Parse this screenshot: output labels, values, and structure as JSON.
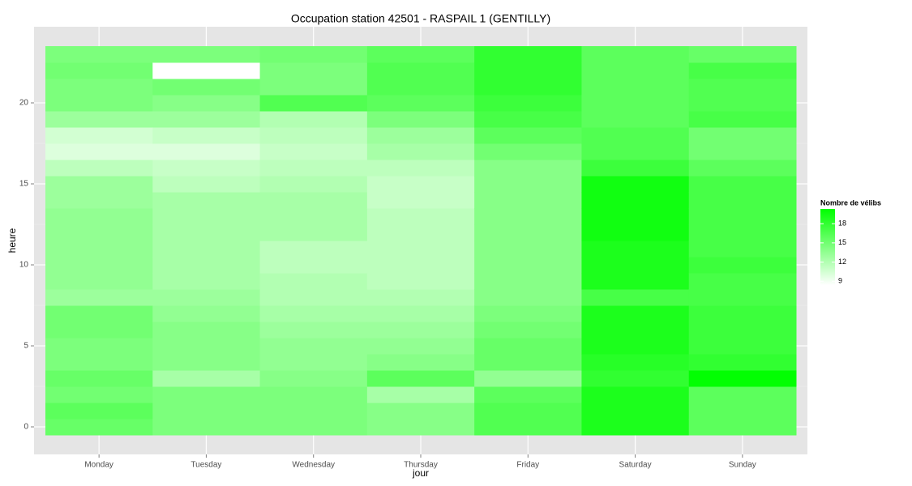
{
  "chart_data": {
    "type": "heatmap",
    "title": "Occupation station 42501 - RASPAIL 1 (GENTILLY)",
    "x_label": "jour",
    "y_label": "heure",
    "categories": [
      "Monday",
      "Tuesday",
      "Wednesday",
      "Thursday",
      "Friday",
      "Saturday",
      "Sunday"
    ],
    "y": [
      0,
      1,
      2,
      3,
      4,
      5,
      6,
      7,
      8,
      9,
      10,
      11,
      12,
      13,
      14,
      15,
      16,
      17,
      18,
      19,
      20,
      21,
      22,
      23
    ],
    "values": [
      [
        15.5,
        16,
        15,
        15.5,
        14.5,
        14.5,
        15,
        15,
        13,
        13.5,
        13.5,
        13.5,
        13.5,
        13.5,
        13,
        13,
        11.5,
        10,
        10.5,
        13,
        14.5,
        14.5,
        15,
        14.5
      ],
      [
        14.5,
        14.5,
        14.5,
        12.5,
        14,
        14,
        14,
        13.5,
        13,
        12.5,
        12.5,
        12.5,
        12.5,
        12.5,
        12.5,
        11.5,
        11,
        10,
        11,
        13,
        14,
        15,
        8.4,
        14.5
      ],
      [
        14.5,
        14.5,
        14.5,
        14,
        13.5,
        13.5,
        13,
        12.5,
        12,
        12,
        11.5,
        11.5,
        12.5,
        12.5,
        12.5,
        12,
        11.5,
        11,
        11.5,
        12,
        16.5,
        14.5,
        14.5,
        15
      ],
      [
        14,
        14,
        12.5,
        16,
        14,
        13.5,
        13,
        12.5,
        12,
        11.5,
        11.5,
        11.5,
        11.5,
        11.5,
        11,
        11,
        11.5,
        12.5,
        13,
        14.5,
        16,
        16.5,
        16.5,
        16
      ],
      [
        16.5,
        16.5,
        16,
        13.5,
        15.5,
        15.5,
        15,
        14.5,
        14,
        14,
        14,
        14,
        14,
        14,
        14,
        14,
        14,
        15,
        16,
        17,
        17.5,
        18,
        18,
        18
      ],
      [
        19,
        19,
        19,
        18,
        18.5,
        19,
        19,
        19,
        17,
        19,
        19,
        19,
        19.5,
        19.5,
        19.5,
        19.5,
        17.5,
        16.5,
        16.5,
        16,
        16,
        16,
        16,
        16
      ],
      [
        16,
        16,
        16,
        20.2,
        18,
        17.5,
        17.5,
        17.5,
        17,
        17,
        17.5,
        17,
        17,
        17,
        17,
        17,
        16,
        15,
        15,
        17,
        16.5,
        16.5,
        17,
        15.5
      ]
    ],
    "ylim": [
      -1.7,
      24.7
    ],
    "yticks": [
      0,
      5,
      10,
      15,
      20
    ],
    "grid": true,
    "legend": {
      "title": "Nombre de vélibs",
      "low_color": "#ffffff",
      "high_color": "#00ff00",
      "limits": [
        8.4,
        20.3
      ],
      "ticks": [
        9,
        12,
        15,
        18
      ],
      "position": "right"
    }
  }
}
